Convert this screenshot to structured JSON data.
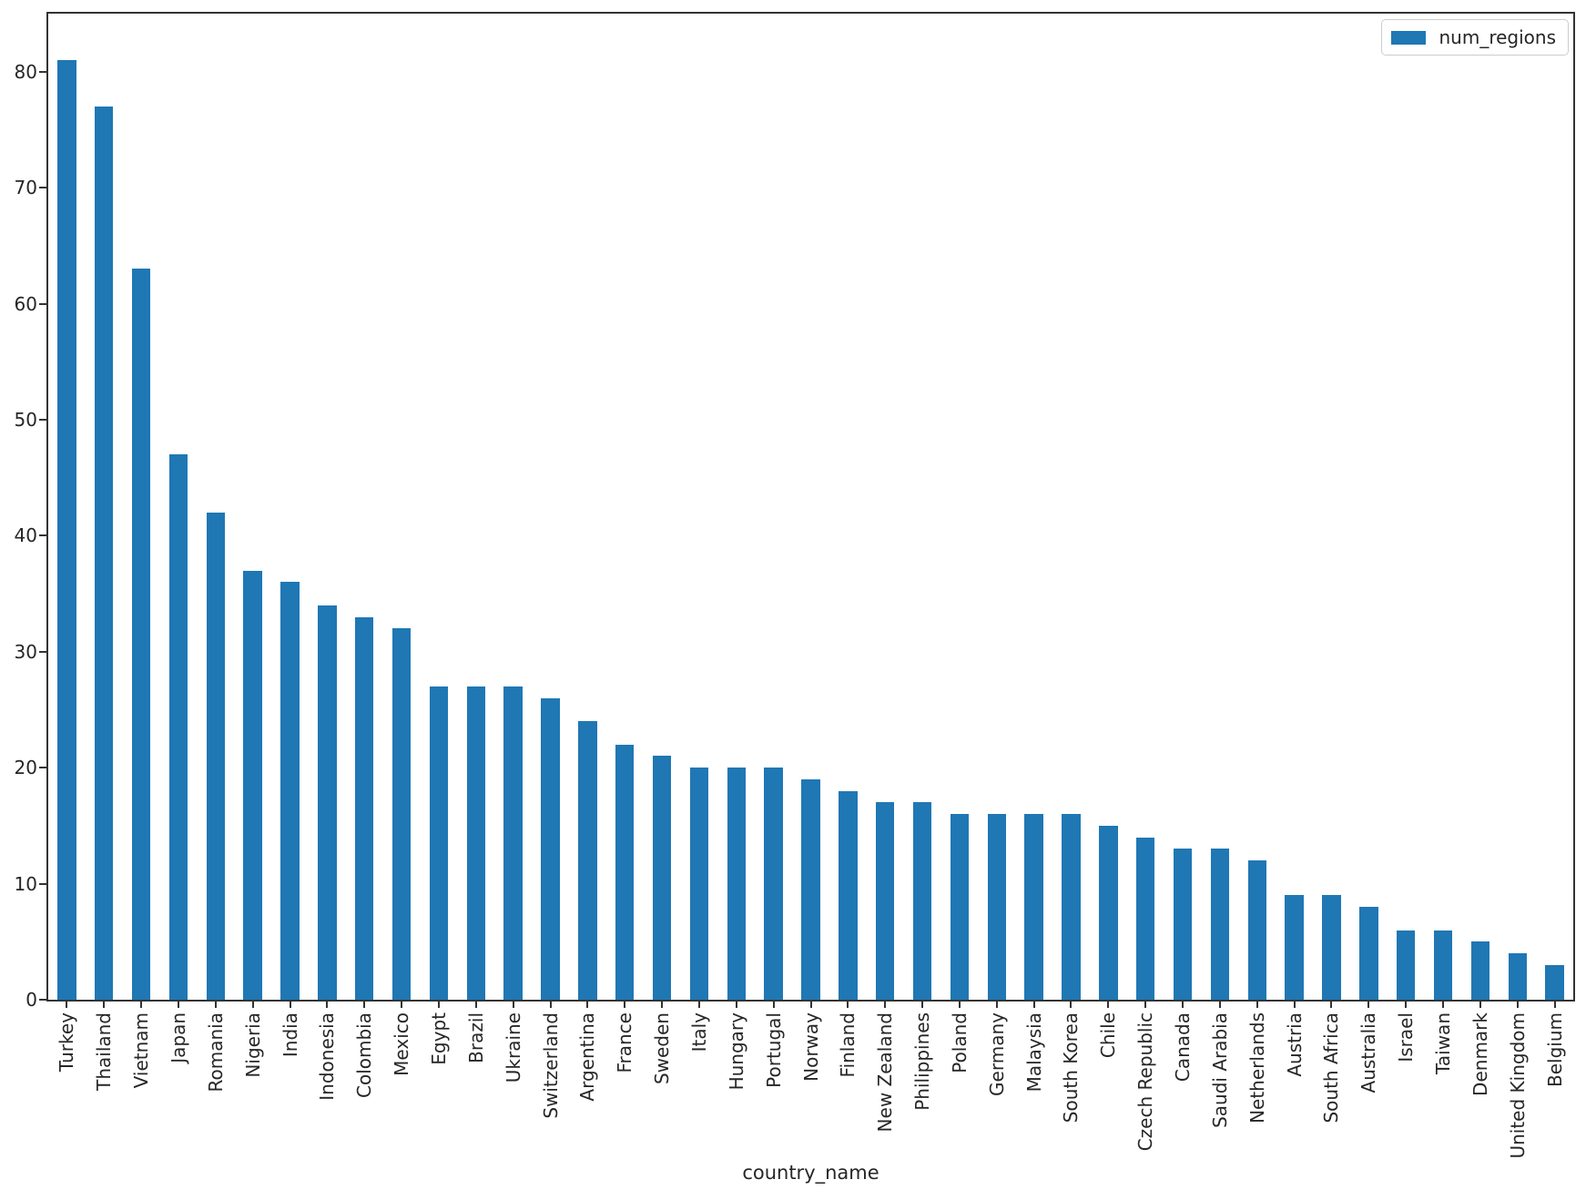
{
  "figure": {
    "background_color": "#ffffff",
    "spine_color": "#333333",
    "text_color": "#262626"
  },
  "legend": {
    "label": "num_regions",
    "swatch_color": "#1f77b4",
    "position": "upper right"
  },
  "chart_data": {
    "type": "bar",
    "title": "",
    "xlabel": "country_name",
    "ylabel": "",
    "series_name": "num_regions",
    "bar_color": "#1f77b4",
    "grid": false,
    "ylim": [
      0,
      85
    ],
    "yticks": [
      0,
      10,
      20,
      30,
      40,
      50,
      60,
      70,
      80
    ],
    "categories": [
      "Turkey",
      "Thailand",
      "Vietnam",
      "Japan",
      "Romania",
      "Nigeria",
      "India",
      "Indonesia",
      "Colombia",
      "Mexico",
      "Egypt",
      "Brazil",
      "Ukraine",
      "Switzerland",
      "Argentina",
      "France",
      "Sweden",
      "Italy",
      "Hungary",
      "Portugal",
      "Norway",
      "Finland",
      "New Zealand",
      "Philippines",
      "Poland",
      "Germany",
      "Malaysia",
      "South Korea",
      "Chile",
      "Czech Republic",
      "Canada",
      "Saudi Arabia",
      "Netherlands",
      "Austria",
      "South Africa",
      "Australia",
      "Israel",
      "Taiwan",
      "Denmark",
      "United Kingdom",
      "Belgium"
    ],
    "values": [
      81,
      77,
      63,
      47,
      42,
      37,
      36,
      34,
      33,
      32,
      27,
      27,
      27,
      26,
      24,
      22,
      21,
      20,
      20,
      20,
      19,
      18,
      17,
      17,
      16,
      16,
      16,
      16,
      15,
      14,
      13,
      13,
      12,
      9,
      9,
      8,
      6,
      6,
      5,
      4,
      3
    ]
  }
}
